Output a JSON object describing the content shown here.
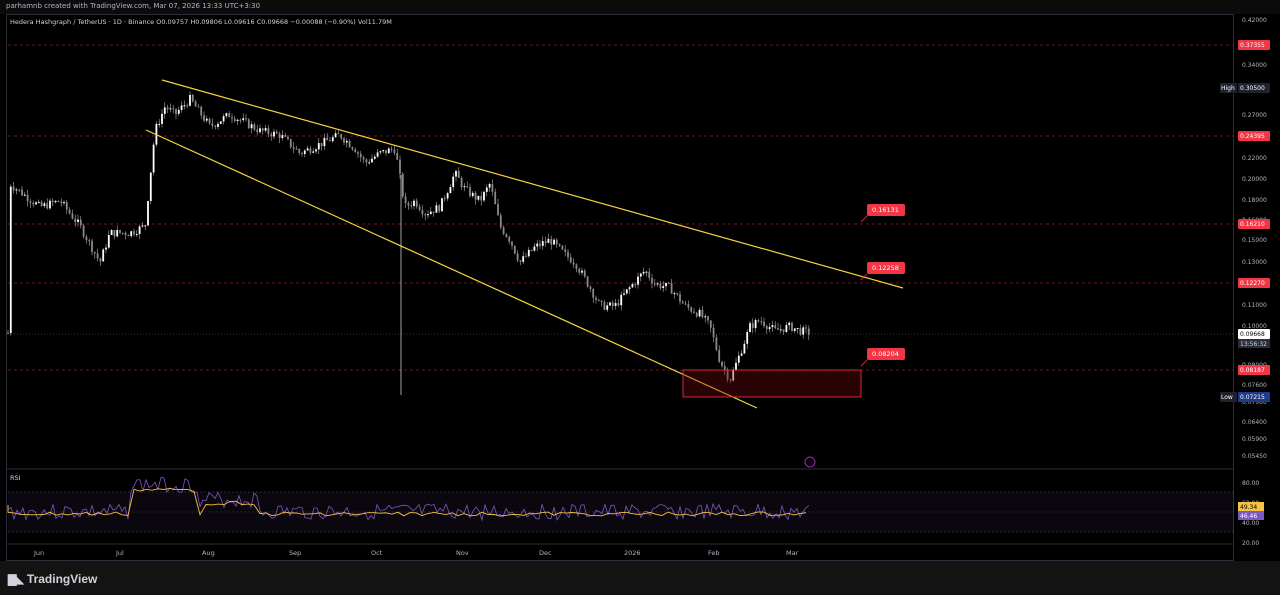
{
  "watermark_text": "parhamnb created with TradingView.com, Mar 07, 2026 13:33 UTC+3:30",
  "brand": "TradingView",
  "chart_data": {
    "type": "candlestick",
    "title": "Hedera Hashgraph / TetherUS · 1D · Binance",
    "ohlc_legend": {
      "open": "O0.09757",
      "high": "H0.09806",
      "low": "L0.09616",
      "close": "C0.09668",
      "change": "−0.00088 (−0.90%)",
      "volume": "Vol11.79M"
    },
    "y_axis_ticks": [
      "0.42000",
      "0.38000",
      "0.34000",
      "0.30000",
      "0.27000",
      "0.24000",
      "0.22000",
      "0.20000",
      "0.18000",
      "0.16000",
      "0.15000",
      "0.13000",
      "0.12000",
      "0.11000",
      "0.10000",
      "0.09000",
      "0.08000",
      "0.07600",
      "0.07000",
      "0.06400",
      "0.05900",
      "0.05450"
    ],
    "x_axis_ticks": [
      "Jun",
      "Jul",
      "Aug",
      "Sep",
      "Oct",
      "Nov",
      "Dec",
      "2026",
      "Feb",
      "Mar"
    ],
    "price_labels": [
      {
        "text": "0.37355",
        "color": "#f23645"
      },
      {
        "text": "0.30500",
        "color": "#1e222d",
        "tag": "High"
      },
      {
        "text": "0.24395",
        "color": "#f23645"
      },
      {
        "text": "0.16210",
        "color": "#f23645"
      },
      {
        "text": "0.12270",
        "color": "#f23645"
      },
      {
        "text": "0.09668",
        "color": "#ffffff",
        "sub": "13:56:32"
      },
      {
        "text": "0.08187",
        "color": "#f23645"
      },
      {
        "text": "0.07215",
        "color": "#1e3a8a",
        "tag": "Low"
      }
    ],
    "horizontal_levels": [
      "0.37355",
      "0.24395",
      "0.16210",
      "0.12270",
      "0.08187"
    ],
    "callouts": [
      "0.16131",
      "0.12258",
      "0.08204"
    ],
    "rsi": {
      "label": "RSI",
      "levels": [
        "80.00",
        "60.00",
        "40.00",
        "20.00"
      ],
      "value": "49.34",
      "ma": "46.46"
    },
    "colors": {
      "bull": "#ffffff",
      "bear": "#ffffff",
      "trendline": "#f5d33f",
      "level": "#d1323d",
      "box": "#f23645",
      "rsi_line": "#7e57c2",
      "rsi_ma": "#f5c242"
    }
  }
}
